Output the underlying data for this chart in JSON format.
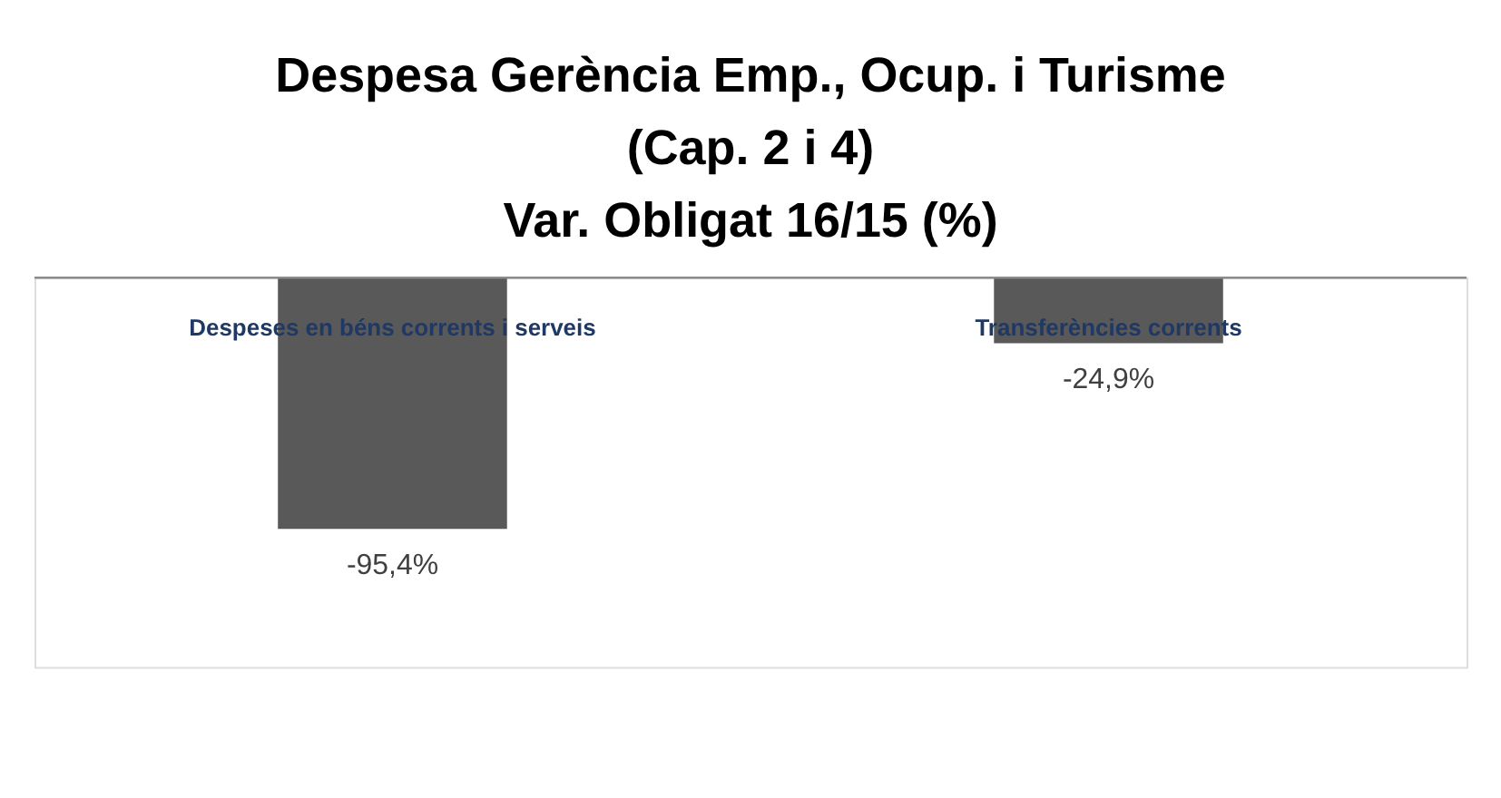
{
  "chart_data": {
    "type": "bar",
    "title": "Despesa Gerència Emp., Ocup. i Turisme\n(Cap. 2 i 4)\nVar. Obligat 16/15 (%)",
    "categories": [
      "Despeses en béns corrents i serveis",
      "Transferències corrents"
    ],
    "values": [
      -95.4,
      -24.9
    ],
    "value_labels": [
      "-95,4%",
      "-24,9%"
    ],
    "color": "#595959"
  }
}
